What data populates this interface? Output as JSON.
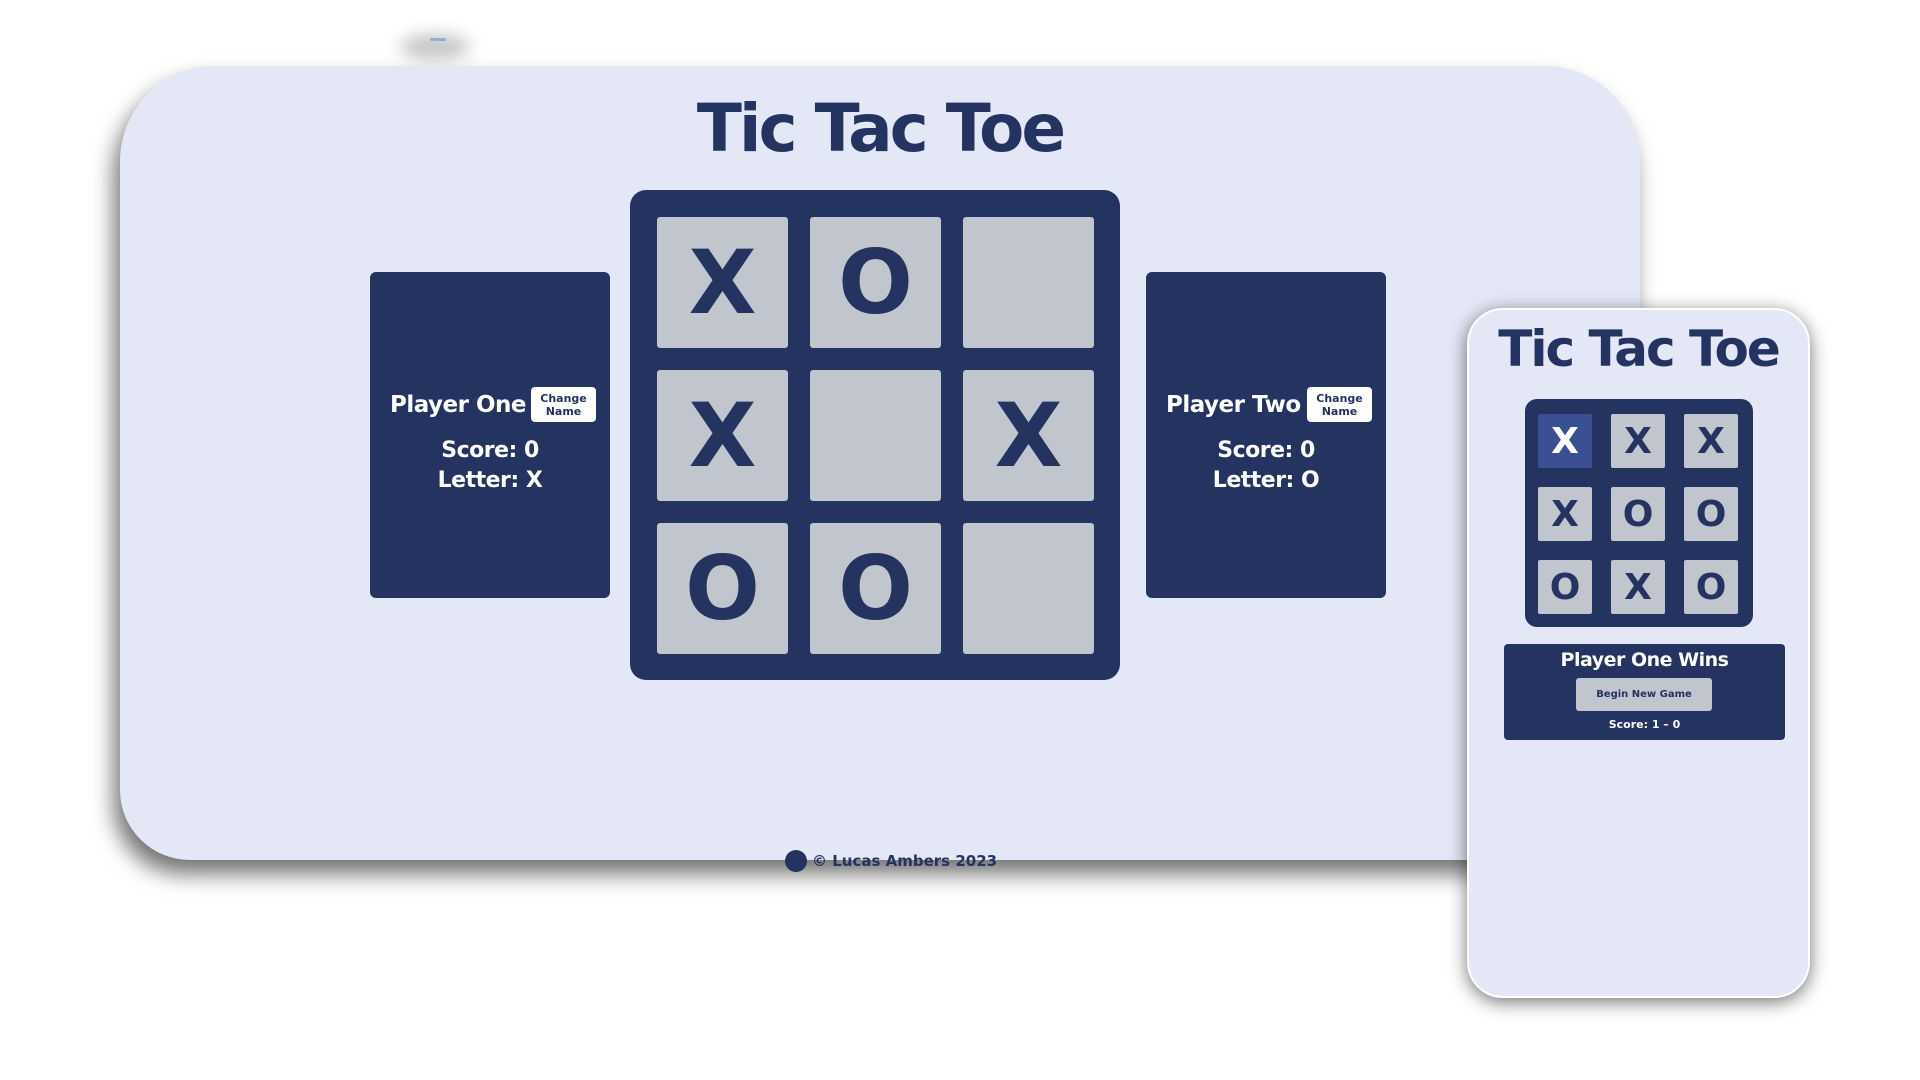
{
  "desktop": {
    "title": "Tic Tac Toe",
    "board": [
      "X",
      "O",
      "",
      "X",
      "",
      "X",
      "O",
      "O",
      ""
    ],
    "player_one": {
      "name": "Player One",
      "change_label_line1": "Change",
      "change_label_line2": "Name",
      "score": "Score: 0",
      "letter": "Letter: X"
    },
    "player_two": {
      "name": "Player Two",
      "change_label_line1": "Change",
      "change_label_line2": "Name",
      "score": "Score: 0",
      "letter": "Letter: O"
    },
    "footer": "© Lucas Ambers 2023"
  },
  "phone": {
    "title": "Tic Tac Toe",
    "board": [
      "X",
      "X",
      "X",
      "X",
      "O",
      "O",
      "O",
      "X",
      "O"
    ],
    "winning_cells": [
      0
    ],
    "result": {
      "title": "Player One Wins",
      "new_game_label": "Begin New Game",
      "score": "Score: 1 – 0"
    }
  },
  "colors": {
    "navy": "#243360",
    "background": "#e3e7f6",
    "cell": "#c1c5cd",
    "highlight": "#3b4f93"
  },
  "icons": {
    "footer_icon": "github-icon"
  }
}
